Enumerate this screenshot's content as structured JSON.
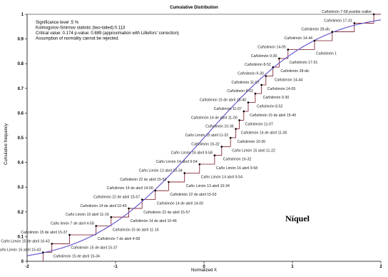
{
  "chart_data": {
    "type": "line",
    "title": "Cumulative Distribution",
    "xlabel": "Normalized X",
    "ylabel": "Cumulative frequency",
    "xlim": [
      -2,
      2
    ],
    "ylim": [
      0,
      1
    ],
    "x_ticks": [
      "-2",
      "-1",
      "0",
      "1",
      "2"
    ],
    "y_ticks": [
      "0",
      "0.1",
      "0.2",
      "0.3",
      "0.4",
      "0.5",
      "0.6",
      "0.7",
      "0.8",
      "0.9",
      "1"
    ],
    "grid": false,
    "stats": [
      "Significance level :5 %",
      "Kolmogorov-Smirnov statistic (two-tailed):0.113",
      "Critical value: 0.174 p-value: 0.889 (approximation with Lilliefors' correction)",
      "Assumption of normality cannot be rejected."
    ],
    "overlay_text": "Níquel",
    "series": [
      {
        "type": "step",
        "x": [
          -1.82,
          -1.72,
          -1.52,
          -1.22,
          -1.05,
          -0.85,
          -0.7,
          -0.55,
          -0.4,
          -0.22,
          -0.05,
          0.12,
          0.2,
          0.3,
          0.36,
          0.4,
          0.45,
          0.5,
          0.58,
          0.65,
          0.7,
          0.78,
          0.85,
          0.95,
          1.25,
          1.45,
          1.7,
          1.92
        ],
        "y": [
          0.036,
          0.071,
          0.107,
          0.143,
          0.179,
          0.214,
          0.25,
          0.286,
          0.321,
          0.357,
          0.393,
          0.429,
          0.464,
          0.5,
          0.536,
          0.571,
          0.607,
          0.643,
          0.679,
          0.714,
          0.75,
          0.786,
          0.821,
          0.857,
          0.893,
          0.929,
          0.964,
          1.0
        ],
        "labels": [
          "Caño Limón 15 abril 15-43",
          "Caño Limón 15 de abril 16-43",
          "Cañolimón 15 de abril 15-37",
          "Caño limón 7 de abril 4-58",
          "Caño Limón 15 abril 11-16",
          "Cañolimón 14 de abril 10-46",
          "Cañolimón 22 de abril 15-57",
          "Cañolimón 14 de abril 14-00",
          "Cañolimón 22 de abril 15-53",
          "Caño Limón 13 abril 10-34",
          "Caño Limón 14 abril 9-54",
          "Caño Limón 16 abril 9-58",
          "Cañolimón 16-32",
          "Caño Limón 15 abril 11-22",
          "Cañolimón 10-36",
          "Cañolimón 14 de abril 11-00",
          "Cañolimón 11-07",
          "Cañolimón 15 de abril 15-40",
          "Cañolimón 8-52",
          "Cañolimón 11-07",
          "Cañolimón 9-30",
          "Cañolimón 8-52",
          "Cañolimón 9-30",
          "Cañolimón 14-05",
          "Cañolimón 14-44",
          "Cañolimón 28-dic",
          "Cañolimón 17-31",
          "Cañolimón 7-58 posible outlier"
        ],
        "lower_labels": [
          "Cañolimón 15 de abril 15-34",
          "Cañolimón 15 de abril 15-37",
          "Cañolimón 7 de abril 4-58",
          "Cañolimón 15 de abril 11-16",
          "Cañolimón 14 de abril 10-46",
          "Cañolimón 22 de abril 15-57",
          "Cañolimón 14 de abril 14-00",
          "Cañolimón 22 de abril 15-53",
          "Caño Limón 13 abril 10-34",
          "Caño Limón 14 abril 9-54",
          "Caño Limón 16 abril 9-58",
          "Cañolimón 16-32",
          "Caño Limón 15 abril 11-22",
          "Cañolimón 10-36",
          "Cañolimón 14 de abril 11-00",
          "Cañolimón 11-07",
          "Cañolimón 15 de abril 15-40",
          "Cañolimón 8-52",
          "Cañolimón 9-30",
          "Cañolimón 14-05",
          "Cañolimón 14-44",
          "Cañolimón 28-dic",
          "Cañolimón 17-31",
          "Cañolimón 1"
        ]
      },
      {
        "type": "normal_cdf",
        "mean": 0,
        "sd": 1
      }
    ],
    "colors": {
      "curve": "#6a5acd",
      "steps": "#7a1020",
      "points": "#000000",
      "axes": "#000000"
    }
  }
}
